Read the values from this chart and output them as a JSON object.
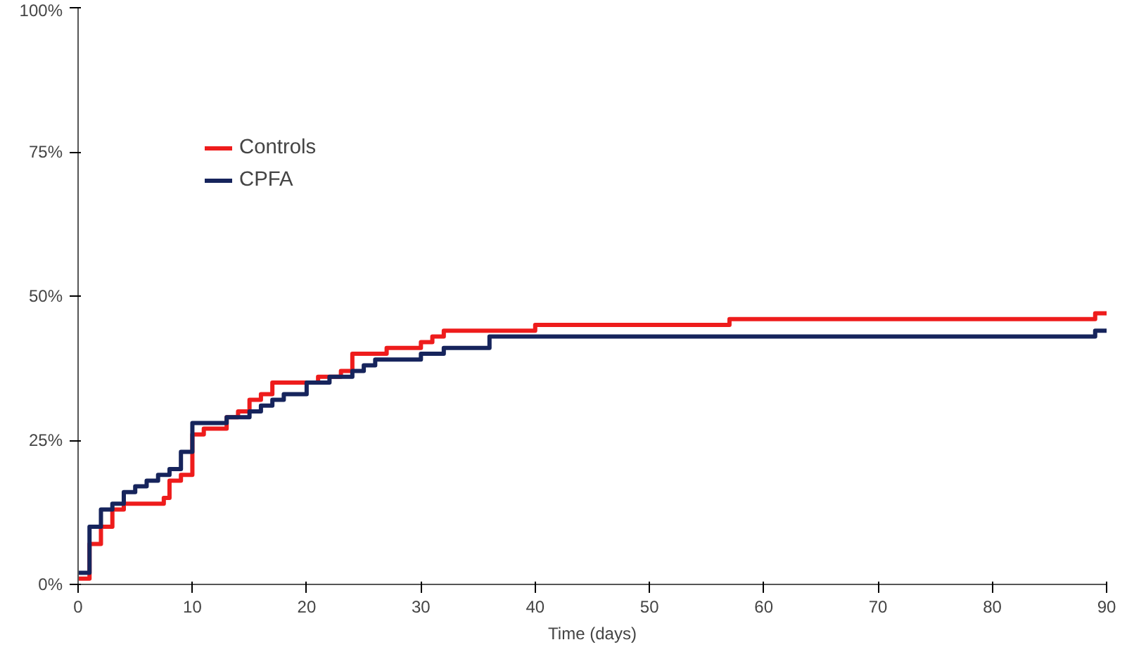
{
  "chart_data": {
    "type": "step",
    "xlabel": "Time (days)",
    "xlim": [
      0,
      90
    ],
    "xticks": [
      0,
      10,
      20,
      30,
      40,
      50,
      60,
      70,
      80,
      90
    ],
    "ylim": [
      0,
      100
    ],
    "yticks": [
      {
        "value": 0,
        "label": "0%"
      },
      {
        "value": 25,
        "label": "25%"
      },
      {
        "value": 50,
        "label": "50%"
      },
      {
        "value": 75,
        "label": "75%"
      },
      {
        "value": 100,
        "label": "100%"
      }
    ],
    "grid": false,
    "legend": "top left",
    "line_style": "solid",
    "series": [
      {
        "name": "Controls",
        "color": "#ee1c1c",
        "x": [
          0,
          1,
          2,
          3,
          4,
          7.5,
          8,
          9,
          10,
          11,
          13,
          14,
          15,
          16,
          17,
          20,
          21,
          23,
          24,
          27,
          30,
          31,
          32,
          40,
          57,
          89,
          90
        ],
        "values": [
          1,
          7,
          10,
          13,
          14,
          15,
          18,
          19,
          26,
          27,
          29,
          30,
          32,
          33,
          35,
          35,
          36,
          37,
          40,
          41,
          42,
          43,
          44,
          45,
          46,
          47,
          47
        ]
      },
      {
        "name": "CPFA",
        "color": "#16245c",
        "x": [
          0,
          1,
          2,
          3,
          4,
          5,
          6,
          7,
          8,
          9,
          10,
          13,
          15,
          16,
          17,
          18,
          20,
          22,
          24,
          25,
          26,
          30,
          32,
          36,
          89,
          90
        ],
        "values": [
          2,
          10,
          13,
          14,
          16,
          17,
          18,
          19,
          20,
          23,
          28,
          29,
          30,
          31,
          32,
          33,
          35,
          36,
          37,
          38,
          39,
          40,
          41,
          43,
          44,
          44
        ]
      }
    ]
  }
}
